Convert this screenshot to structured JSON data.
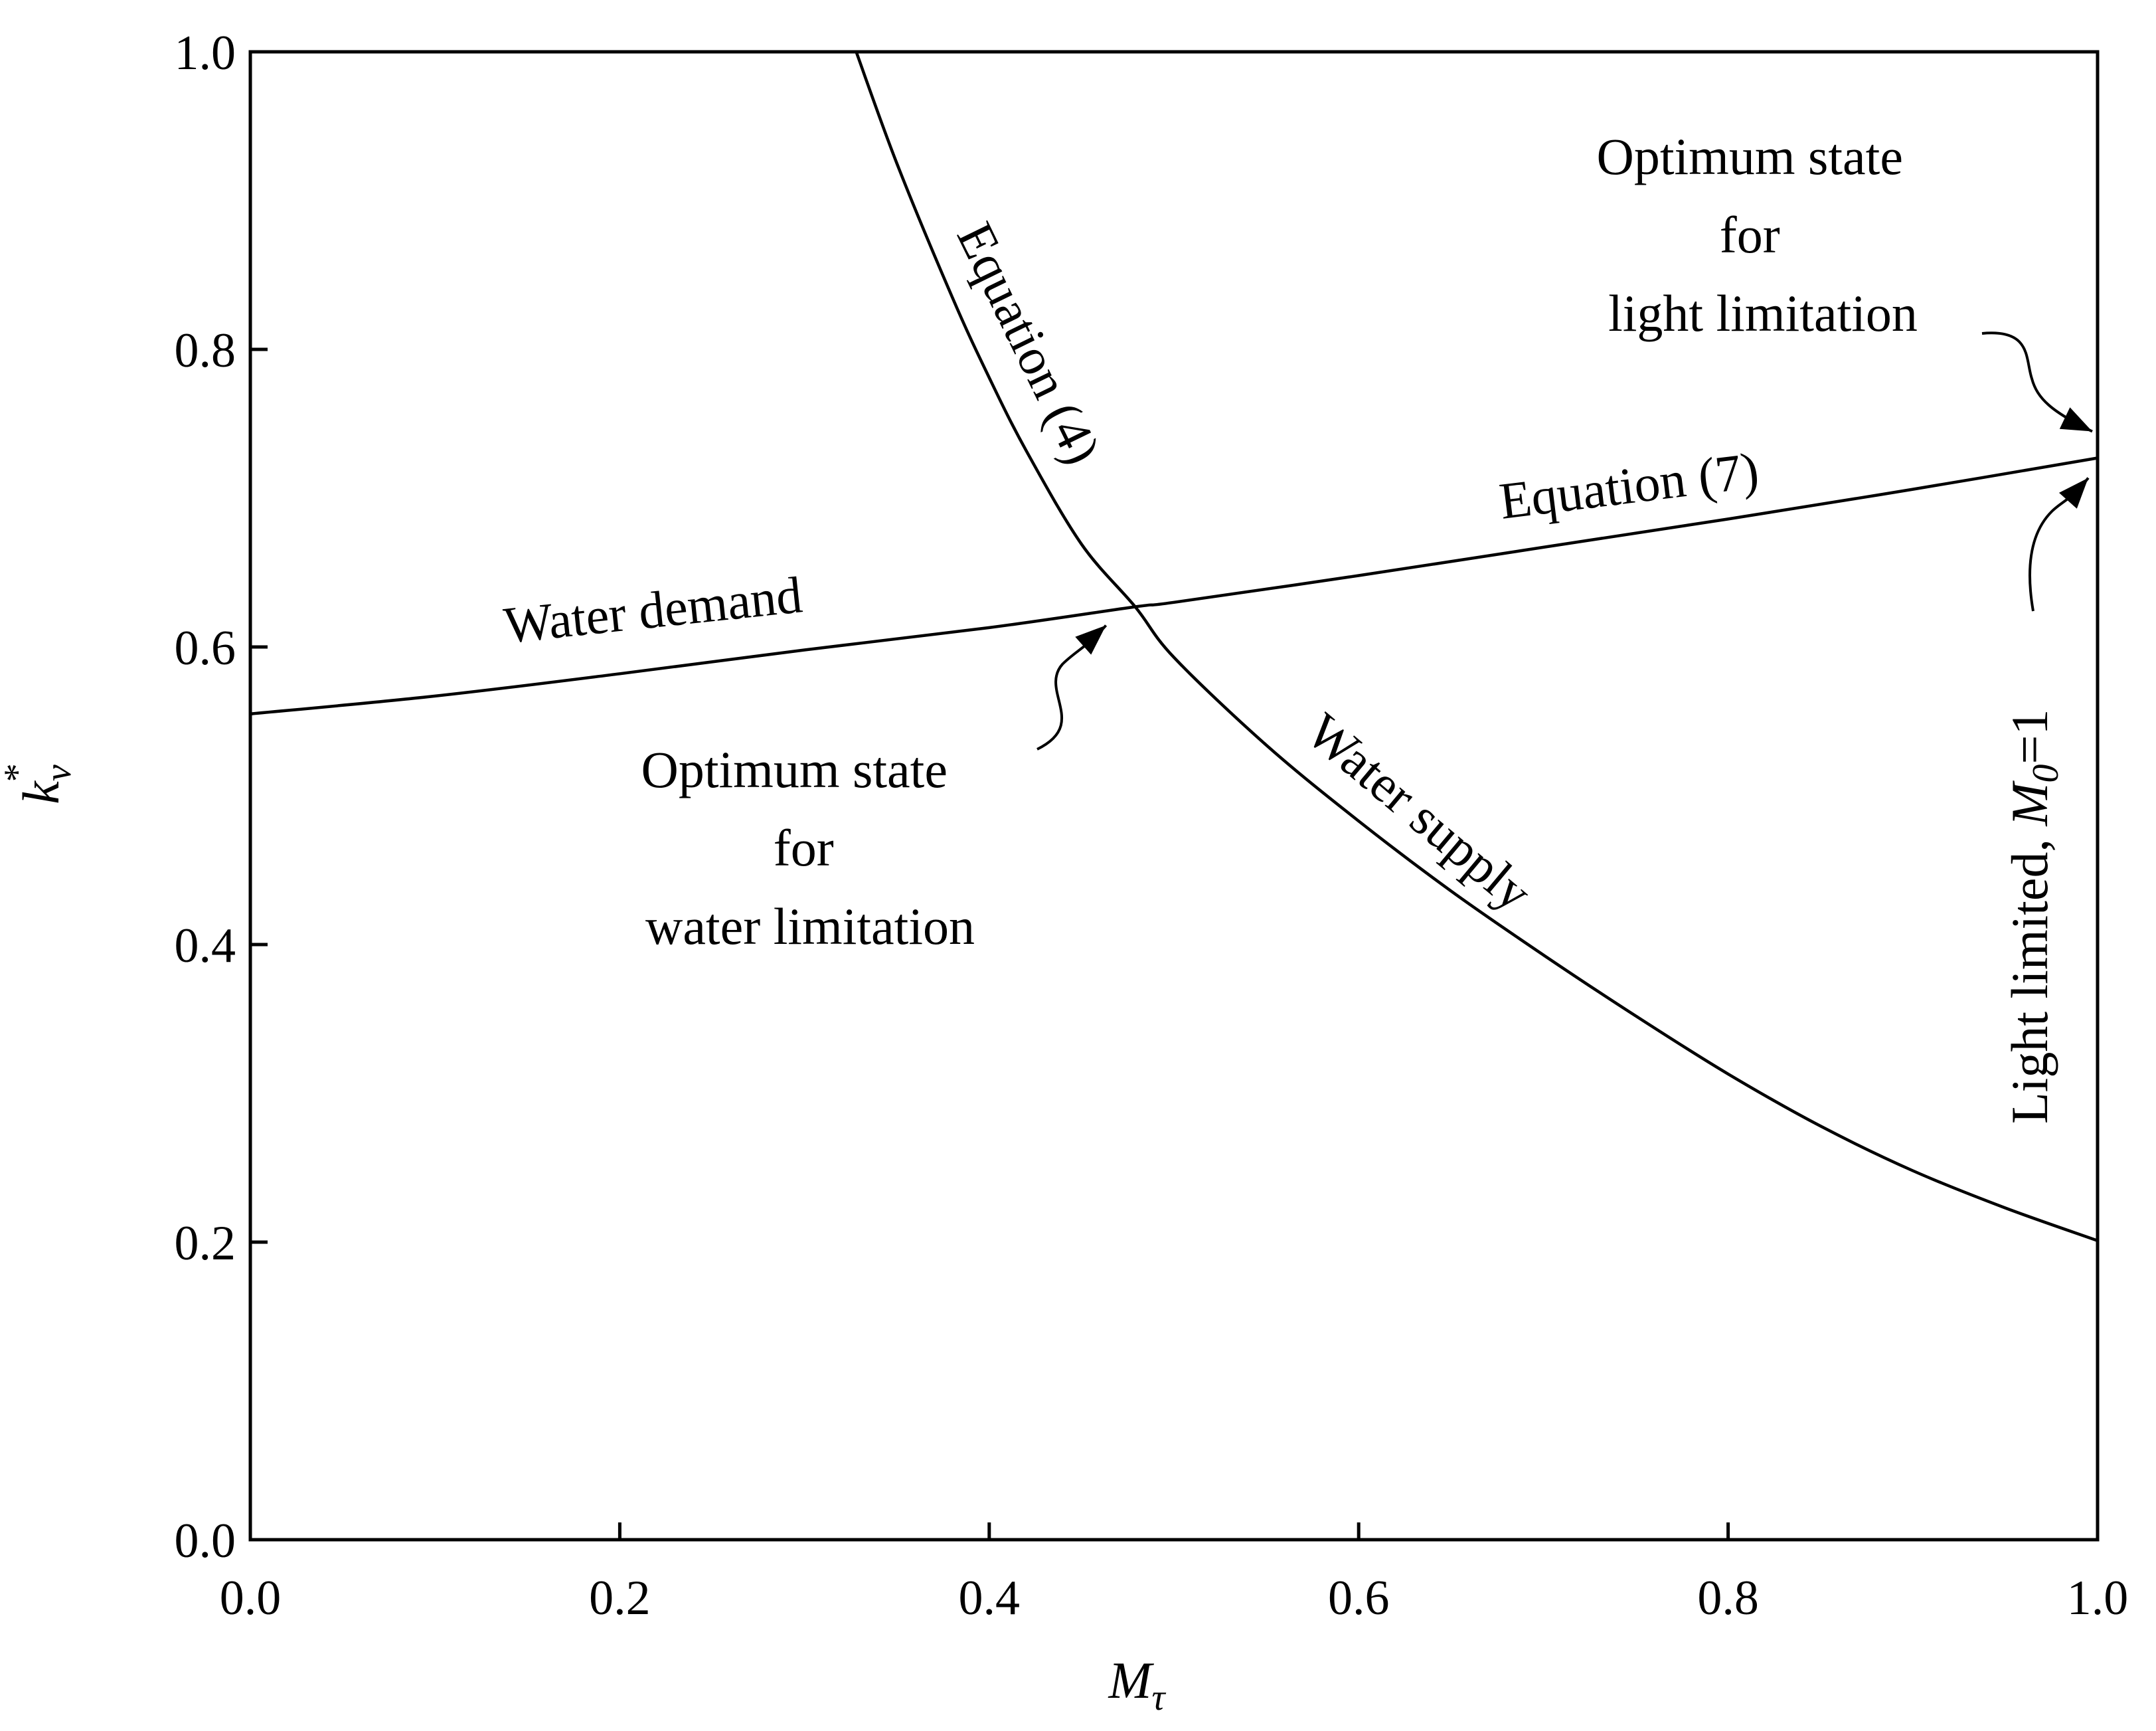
{
  "chart_data": {
    "type": "line",
    "title": "",
    "xlabel": {
      "main": "M",
      "sub": "τ"
    },
    "ylabel": {
      "main": "k",
      "sub": "v",
      "sup": "*"
    },
    "xlim": [
      0.0,
      1.0
    ],
    "ylim": [
      0.0,
      1.0
    ],
    "xticks": [
      "0.0",
      "0.2",
      "0.4",
      "0.6",
      "0.8",
      "1.0"
    ],
    "yticks": [
      "0.0",
      "0.2",
      "0.4",
      "0.6",
      "0.8",
      "1.0"
    ],
    "grid": false,
    "series": [
      {
        "name": "Water supply (Equation (4))",
        "x": [
          0.328,
          0.35,
          0.38,
          0.4,
          0.42,
          0.45,
          0.479,
          0.5,
          0.55,
          0.6,
          0.65,
          0.7,
          0.75,
          0.8,
          0.85,
          0.9,
          0.95,
          1.0
        ],
        "y": [
          1.0,
          0.925,
          0.835,
          0.781,
          0.732,
          0.669,
          0.627,
          0.593,
          0.534,
          0.483,
          0.436,
          0.393,
          0.352,
          0.313,
          0.278,
          0.248,
          0.223,
          0.201
        ]
      },
      {
        "name": "Water demand (Equation (7))",
        "x": [
          0.0,
          0.1,
          0.2,
          0.3,
          0.4,
          0.479,
          0.5,
          0.6,
          0.7,
          0.8,
          0.9,
          1.0
        ],
        "y": [
          0.555,
          0.567,
          0.582,
          0.598,
          0.613,
          0.627,
          0.63,
          0.648,
          0.667,
          0.686,
          0.706,
          0.727
        ]
      }
    ],
    "annotations": {
      "equation4": "Equation (4)",
      "equation7": "Equation (7)",
      "water_demand": "Water demand",
      "water_supply": "Water supply",
      "optimum_water": [
        "Optimum state",
        "for",
        "water limitation"
      ],
      "optimum_light": [
        "Optimum state",
        "for",
        "light limitation"
      ],
      "light_limited_text": "Light limited, ",
      "light_limited_var": "M",
      "light_limited_sub": "0",
      "light_limited_eq": "=1"
    },
    "points": {
      "water_optimum": {
        "x": 0.479,
        "y": 0.627
      },
      "light_optimum": {
        "x": 1.0,
        "y": 0.727
      }
    }
  }
}
